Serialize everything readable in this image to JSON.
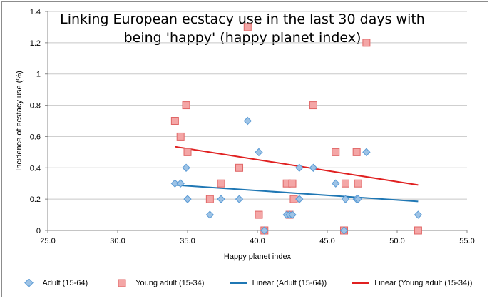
{
  "chart_data": {
    "type": "scatter",
    "title_lines": [
      "Linking European ecstacy use in the last 30 days with",
      "being 'happy' (happy planet index)"
    ],
    "xlabel": "Happy planet index",
    "ylabel": "Incidence of ecstacy use (%)",
    "xlim": [
      25.0,
      55.0
    ],
    "ylim": [
      0,
      1.4
    ],
    "xticks": [
      "25.0",
      "30.0",
      "35.0",
      "40.0",
      "45.0",
      "50.0",
      "55.0"
    ],
    "yticks": [
      "0",
      "0.2",
      "0.4",
      "0.6",
      "0.8",
      "1",
      "1.2",
      "1.4"
    ],
    "grid": "horizontal",
    "legend_position": "bottom",
    "series": [
      {
        "name": "Adult (15-64)",
        "marker": "diamond",
        "color": "#9dc3e6",
        "edge": "#5b9bd5",
        "points": [
          [
            34.1,
            0.3
          ],
          [
            34.5,
            0.3
          ],
          [
            34.9,
            0.4
          ],
          [
            35.0,
            0.2
          ],
          [
            36.6,
            0.1
          ],
          [
            37.4,
            0.2
          ],
          [
            38.7,
            0.2
          ],
          [
            39.3,
            0.7
          ],
          [
            40.1,
            0.5
          ],
          [
            40.5,
            0.0
          ],
          [
            42.1,
            0.1
          ],
          [
            42.3,
            0.1
          ],
          [
            42.5,
            0.1
          ],
          [
            43.0,
            0.4
          ],
          [
            43.0,
            0.2
          ],
          [
            44.0,
            0.4
          ],
          [
            45.6,
            0.3
          ],
          [
            46.3,
            0.2
          ],
          [
            46.2,
            0.0
          ],
          [
            47.1,
            0.2
          ],
          [
            47.2,
            0.2
          ],
          [
            47.8,
            0.5
          ],
          [
            51.5,
            0.1
          ]
        ]
      },
      {
        "name": "Young adult (15-34)",
        "marker": "square",
        "color": "#f4a6a6",
        "edge": "#e06666",
        "points": [
          [
            34.1,
            0.7
          ],
          [
            34.5,
            0.6
          ],
          [
            34.9,
            0.8
          ],
          [
            35.0,
            0.5
          ],
          [
            36.6,
            0.2
          ],
          [
            37.4,
            0.3
          ],
          [
            38.7,
            0.4
          ],
          [
            39.3,
            1.3
          ],
          [
            40.1,
            0.1
          ],
          [
            40.5,
            0.0
          ],
          [
            42.1,
            0.3
          ],
          [
            42.3,
            0.1
          ],
          [
            42.5,
            0.3
          ],
          [
            42.6,
            0.2
          ],
          [
            44.0,
            0.8
          ],
          [
            45.6,
            0.5
          ],
          [
            46.2,
            0.0
          ],
          [
            46.3,
            0.3
          ],
          [
            47.1,
            0.5
          ],
          [
            47.2,
            0.3
          ],
          [
            47.8,
            1.2
          ],
          [
            51.5,
            0.0
          ]
        ]
      },
      {
        "name": "Linear (Adult (15-64))",
        "type": "line",
        "color": "#1f77b4",
        "points": [
          [
            34.1,
            0.29
          ],
          [
            51.5,
            0.185
          ]
        ]
      },
      {
        "name": "Linear (Young adult (15-34))",
        "type": "line",
        "color": "#e02020",
        "points": [
          [
            34.1,
            0.535
          ],
          [
            51.5,
            0.29
          ]
        ]
      }
    ]
  }
}
